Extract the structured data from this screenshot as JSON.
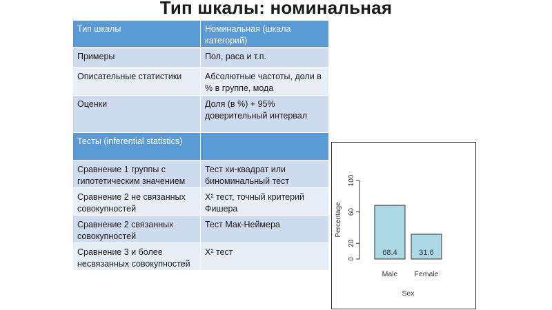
{
  "page": {
    "title": "Тип шкалы: номинальная"
  },
  "table": {
    "rows": [
      {
        "style": "head",
        "c1": "Тип шкалы",
        "c2": "Номинальная (шкала категорий)"
      },
      {
        "style": "a",
        "c1": "Примеры",
        "c2": "Пол, раса и т.п."
      },
      {
        "style": "b",
        "c1": "Описательные статистики",
        "c2": "Абсолютные частоты, доли в % в группе, мода"
      },
      {
        "style": "a",
        "c1": "Оценки",
        "c2": "Доля (в %) + 95% доверительный интервал"
      },
      {
        "style": "head",
        "c1": "Тесты (inferential statistics)",
        "c2": ""
      },
      {
        "style": "a",
        "c1": "Сравнение 1 группы с гипотетическим значением",
        "c2": "Тест хи-квадрат или биноминальный тест"
      },
      {
        "style": "b",
        "c1": "Сравнение 2 не связанных совокупностей",
        "c2": "X² тест, точный критерий Фишера"
      },
      {
        "style": "a",
        "c1": "Сравнение 2 связанных совокупностей",
        "c2": "Тест Мак-Неймера"
      },
      {
        "style": "b",
        "c1": "Сравнение 3 и более несвязанных совокупностей",
        "c2": "X² тест"
      }
    ]
  },
  "chart_data": {
    "type": "bar",
    "categories": [
      "Male",
      "Female"
    ],
    "values": [
      68.4,
      31.6
    ],
    "data_labels": [
      "68.4",
      "31.6"
    ],
    "xlabel": "Sex",
    "ylabel": "Percentage",
    "ylim": [
      0,
      100
    ],
    "yticks": [
      "0",
      "20",
      "60",
      "100"
    ],
    "bar_color": "#add8e6",
    "grid": false
  }
}
